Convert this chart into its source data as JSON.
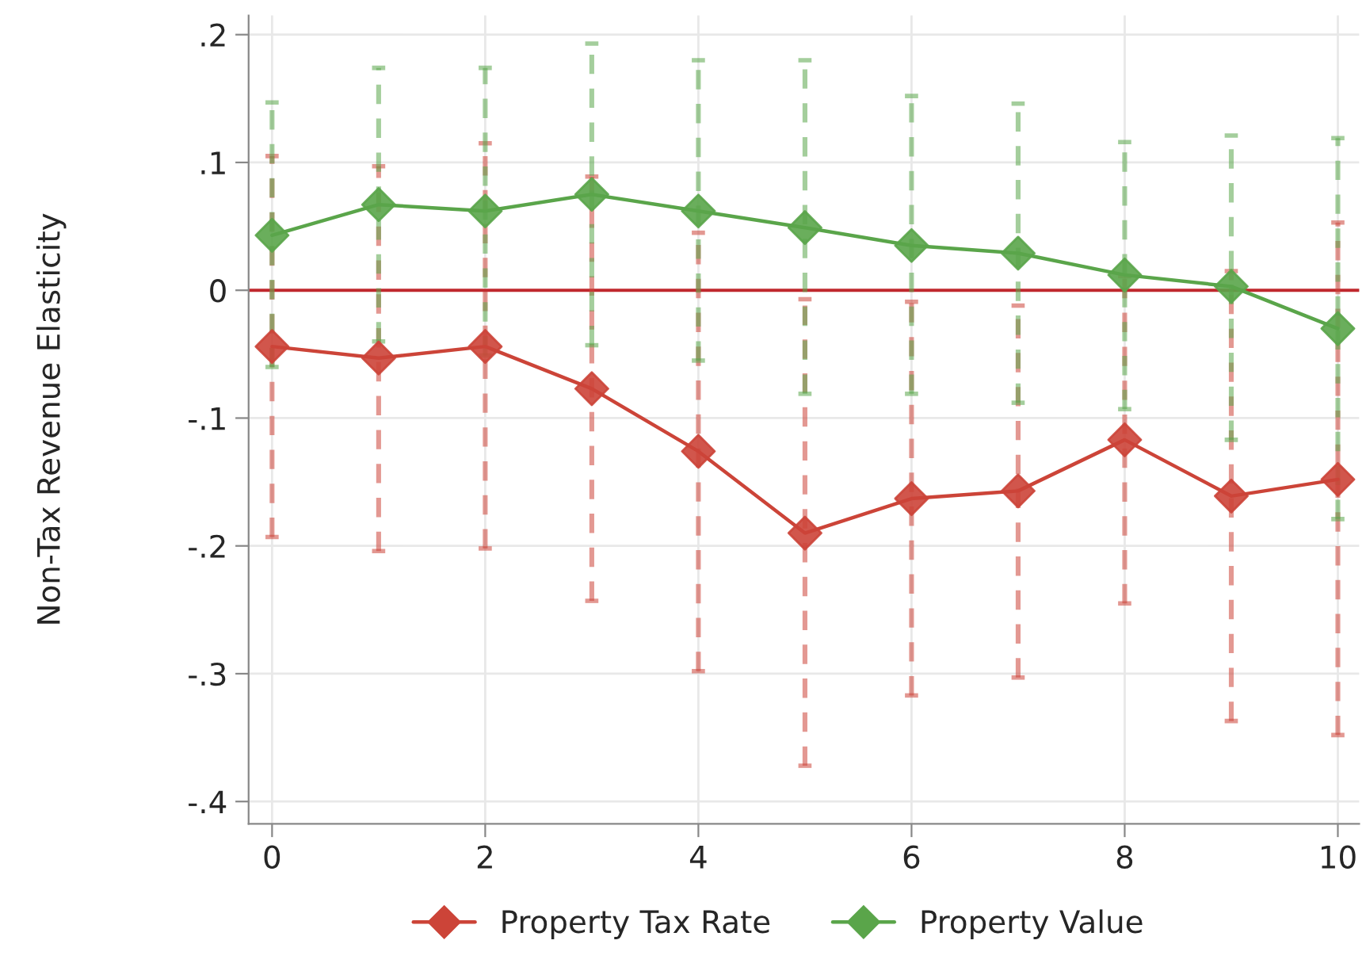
{
  "chart_data": {
    "type": "line",
    "ylabel": "Non-Tax Revenue Elasticity",
    "x": [
      0,
      1,
      2,
      3,
      4,
      5,
      6,
      7,
      8,
      9,
      10
    ],
    "series": [
      {
        "name": "Property Tax Rate",
        "color": "#cc4438",
        "values": [
          -0.044,
          -0.053,
          -0.044,
          -0.077,
          -0.126,
          -0.19,
          -0.163,
          -0.157,
          -0.117,
          -0.161,
          -0.148
        ],
        "errors": [
          [
            -0.193,
            0.105
          ],
          [
            -0.204,
            0.097
          ],
          [
            -0.202,
            0.115
          ],
          [
            -0.243,
            0.089
          ],
          [
            -0.298,
            0.045
          ],
          [
            -0.372,
            -0.007
          ],
          [
            -0.317,
            -0.009
          ],
          [
            -0.303,
            -0.012
          ],
          [
            -0.245,
            0.011
          ],
          [
            -0.337,
            0.015
          ],
          [
            -0.348,
            0.053
          ]
        ]
      },
      {
        "name": "Property Value",
        "color": "#5aa54a",
        "values": [
          0.043,
          0.067,
          0.062,
          0.075,
          0.062,
          0.049,
          0.035,
          0.029,
          0.012,
          0.003,
          -0.03
        ],
        "errors": [
          [
            -0.06,
            0.147
          ],
          [
            -0.04,
            0.174
          ],
          [
            -0.051,
            0.174
          ],
          [
            -0.043,
            0.193
          ],
          [
            -0.055,
            0.18
          ],
          [
            -0.081,
            0.18
          ],
          [
            -0.081,
            0.152
          ],
          [
            -0.088,
            0.146
          ],
          [
            -0.093,
            0.116
          ],
          [
            -0.117,
            0.121
          ],
          [
            -0.179,
            0.119
          ]
        ]
      }
    ],
    "ref_lines": [
      {
        "axis": "y",
        "value": 0,
        "color": "#c0282d",
        "line_style": "solid"
      }
    ],
    "xlim": [
      -0.22,
      10.2
    ],
    "ylim": [
      -0.4175,
      0.215
    ],
    "xticks": [
      0,
      2,
      4,
      6,
      8,
      10
    ],
    "yticks": [
      {
        "value": 0.2,
        "label": ".2"
      },
      {
        "value": 0.1,
        "label": ".1"
      },
      0,
      {
        "value": -0.1,
        "label": "-.1"
      },
      {
        "value": -0.2,
        "label": "-.2"
      },
      {
        "value": -0.3,
        "label": "-.3"
      },
      {
        "value": -0.4,
        "label": "-.4"
      }
    ],
    "grid": true,
    "legend": "bottom",
    "marker": "diamond",
    "line_style": "solid"
  }
}
